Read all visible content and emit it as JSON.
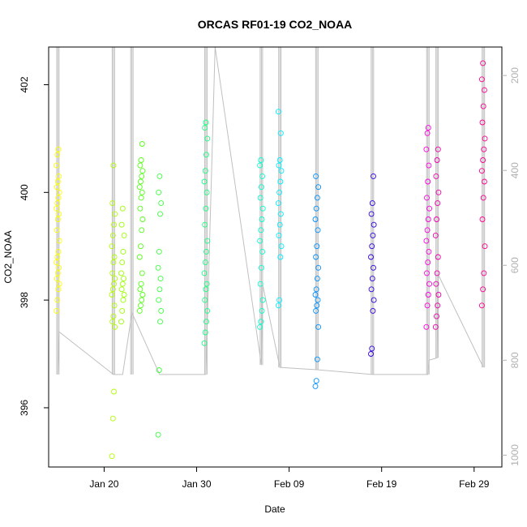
{
  "chart_data": {
    "type": "scatter",
    "title": "ORCAS RF01-19 CO2_NOAA",
    "xlabel": "Date",
    "ylabel": "CO2_NOAA",
    "x_axis_type": "date",
    "xlim": [
      "2016-01-14",
      "2016-03-03"
    ],
    "x_ticks": [
      {
        "date": "2016-01-20",
        "label": "Jan 20"
      },
      {
        "date": "2016-01-30",
        "label": "Jan 30"
      },
      {
        "date": "2016-02-09",
        "label": "Feb 09"
      },
      {
        "date": "2016-02-19",
        "label": "Feb 19"
      },
      {
        "date": "2016-02-29",
        "label": "Feb 29"
      }
    ],
    "ylim": [
      394.9,
      402.7
    ],
    "y_ticks": [
      396,
      398,
      400,
      402
    ],
    "right_axis": {
      "quantity": "pressure",
      "reversed": true,
      "lim": [
        1025,
        140
      ],
      "ticks": [
        200,
        400,
        600,
        800,
        1000
      ],
      "color": "#b0b0b0"
    },
    "marker": "open-circle",
    "grid": false,
    "legend": "none",
    "series": [
      {
        "date": "2016-01-15",
        "color": "#FFFF00",
        "values": [
          397.8,
          398.0,
          398.2,
          398.3,
          398.4,
          398.5,
          398.6,
          398.7,
          398.8,
          398.9,
          399.1,
          399.3,
          399.5,
          399.6,
          399.7,
          399.8,
          399.9,
          400.0,
          400.1,
          400.2,
          400.3,
          400.5,
          400.7,
          400.8
        ]
      },
      {
        "date": "2016-01-21",
        "color": "#B0FF00",
        "values": [
          395.1,
          395.8,
          396.3,
          397.5,
          397.6,
          397.7,
          397.9,
          398.1,
          398.2,
          398.3,
          398.4,
          398.5,
          398.7,
          398.8,
          399.0,
          399.2,
          399.4,
          399.6,
          399.8,
          400.5
        ]
      },
      {
        "date": "2016-01-22",
        "color": "#9CFF00",
        "values": [
          397.6,
          397.8,
          398.0,
          398.1,
          398.2,
          398.3,
          398.4,
          398.5,
          398.7,
          398.9,
          399.2,
          399.4,
          399.7
        ]
      },
      {
        "date": "2016-01-24",
        "color": "#55FF18",
        "values": [
          397.8,
          397.9,
          398.0,
          398.1,
          398.2,
          398.3,
          398.5,
          398.8,
          399.0,
          399.3,
          399.5,
          399.7,
          399.9,
          400.0,
          400.1,
          400.2,
          400.3,
          400.4,
          400.5,
          400.6,
          400.9
        ]
      },
      {
        "date": "2016-01-26",
        "color": "#3CFF40",
        "values": [
          395.5,
          396.7,
          397.6,
          397.8,
          398.0,
          398.2,
          398.4,
          398.6,
          398.9,
          399.6,
          399.8,
          400.0,
          400.3
        ]
      },
      {
        "date": "2016-01-31",
        "color": "#1AFF80",
        "values": [
          397.2,
          397.4,
          397.6,
          397.8,
          398.0,
          398.2,
          398.3,
          398.5,
          398.7,
          398.9,
          399.1,
          399.4,
          399.7,
          400.0,
          400.2,
          400.4,
          400.7,
          401.0,
          401.2,
          401.3
        ]
      },
      {
        "date": "2016-02-06",
        "color": "#00FFCC",
        "values": [
          397.5,
          397.6,
          397.8,
          398.0,
          398.3,
          398.6,
          398.9,
          399.1,
          399.3,
          399.5,
          399.7,
          399.9,
          400.1,
          400.3,
          400.5,
          400.6
        ]
      },
      {
        "date": "2016-02-08",
        "color": "#00F0FF",
        "values": [
          397.9,
          398.0,
          398.8,
          399.0,
          399.2,
          399.4,
          399.6,
          399.8,
          400.0,
          400.2,
          400.4,
          400.5,
          400.6,
          401.1,
          401.5
        ]
      },
      {
        "date": "2016-02-12",
        "color": "#0090FF",
        "values": [
          396.4,
          396.5,
          396.9,
          397.5,
          397.8,
          397.9,
          398.0,
          398.1,
          398.2,
          398.4,
          398.6,
          398.8,
          399.0,
          399.3,
          399.5,
          399.7,
          399.9,
          400.1,
          400.3
        ]
      },
      {
        "date": "2016-02-18",
        "color": "#3000E0",
        "values": [
          397.0,
          397.1,
          397.8,
          398.0,
          398.2,
          398.4,
          398.6,
          398.8,
          399.0,
          399.2,
          399.4,
          399.6,
          399.8,
          400.3
        ]
      },
      {
        "date": "2016-02-24",
        "color": "#FF00E0",
        "values": [
          397.5,
          397.9,
          398.1,
          398.3,
          398.5,
          398.7,
          398.9,
          399.1,
          399.3,
          399.5,
          399.7,
          399.9,
          400.2,
          400.5,
          400.8,
          401.1,
          401.2
        ]
      },
      {
        "date": "2016-02-25",
        "color": "#EE00A8",
        "values": [
          397.5,
          397.7,
          397.9,
          398.1,
          398.3,
          398.5,
          398.8,
          399.2,
          399.5,
          399.8,
          400.0,
          400.3,
          400.6,
          400.8
        ]
      },
      {
        "date": "2016-03-01",
        "color": "#FF0090",
        "values": [
          397.9,
          398.2,
          398.5,
          399.0,
          399.5,
          399.9,
          400.2,
          400.4,
          400.6,
          400.8,
          401.0,
          401.3,
          401.6,
          401.9,
          402.1,
          402.4
        ]
      }
    ],
    "pressure_trace": {
      "color": "#c0c0c0",
      "points": [
        {
          "date": "2016-01-15",
          "pressure": 830
        },
        {
          "date": "2016-01-15",
          "pressure": 740
        },
        {
          "date": "2016-01-21",
          "pressure": 830
        },
        {
          "date": "2016-01-22",
          "pressure": 830
        },
        {
          "date": "2016-01-23",
          "pressure": 700
        },
        {
          "date": "2016-01-26",
          "pressure": 830
        },
        {
          "date": "2016-01-31",
          "pressure": 830
        },
        {
          "date": "2016-02-01",
          "pressure": 140
        },
        {
          "date": "2016-02-06",
          "pressure": 810
        },
        {
          "date": "2016-02-06",
          "pressure": 640
        },
        {
          "date": "2016-02-08",
          "pressure": 815
        },
        {
          "date": "2016-02-12",
          "pressure": 820
        },
        {
          "date": "2016-02-18",
          "pressure": 830
        },
        {
          "date": "2016-02-24",
          "pressure": 830
        },
        {
          "date": "2016-02-24",
          "pressure": 800
        },
        {
          "date": "2016-02-25",
          "pressure": 795
        },
        {
          "date": "2016-02-25",
          "pressure": 620
        },
        {
          "date": "2016-03-01",
          "pressure": 815
        }
      ],
      "profiles": [
        {
          "date": "2016-01-15",
          "top": 140,
          "bottom": 830
        },
        {
          "date": "2016-01-21",
          "top": 140,
          "bottom": 830
        },
        {
          "date": "2016-01-23",
          "top": 140,
          "bottom": 830
        },
        {
          "date": "2016-01-31",
          "top": 140,
          "bottom": 830
        },
        {
          "date": "2016-02-06",
          "top": 140,
          "bottom": 810
        },
        {
          "date": "2016-02-08",
          "top": 140,
          "bottom": 815
        },
        {
          "date": "2016-02-12",
          "top": 140,
          "bottom": 820
        },
        {
          "date": "2016-02-18",
          "top": 140,
          "bottom": 830
        },
        {
          "date": "2016-02-24",
          "top": 140,
          "bottom": 830
        },
        {
          "date": "2016-02-25",
          "top": 140,
          "bottom": 795
        },
        {
          "date": "2016-03-01",
          "top": 140,
          "bottom": 815
        }
      ]
    }
  }
}
